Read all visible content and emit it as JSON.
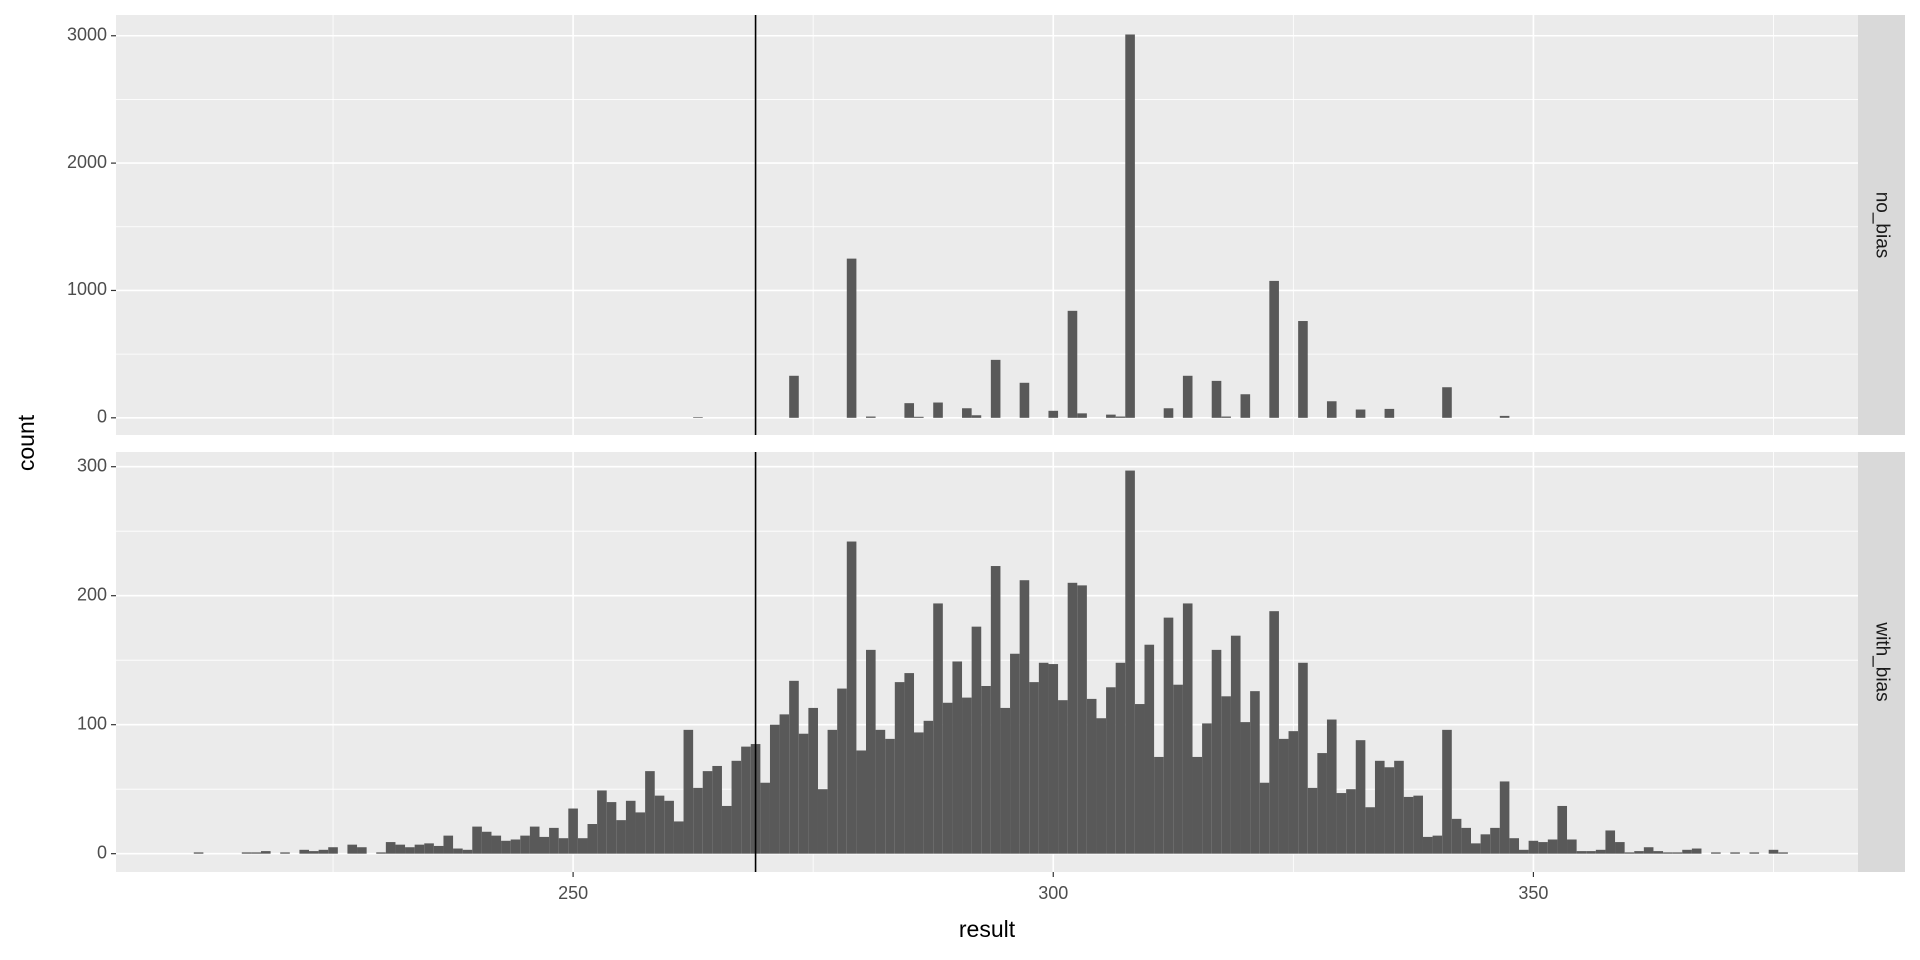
{
  "chart_data": {
    "type": "histogram",
    "x_label": "result",
    "y_label": "count",
    "color": "#595959",
    "grid": true,
    "xlim": [
      202.4,
      383.8
    ],
    "xticks": [
      250,
      300,
      350
    ],
    "vline": 269,
    "bins": [
      210.5,
      211.5,
      212.5,
      213.5,
      214.5,
      215.5,
      216.5,
      217.5,
      218.5,
      219.5,
      220.5,
      221.5,
      222.5,
      223.5,
      224.5,
      225.5,
      226.5,
      227.5,
      228.5,
      229.5,
      230.5,
      231.5,
      232.5,
      233.5,
      234.5,
      235.5,
      236.5,
      237.5,
      238.5,
      239.5,
      240.5,
      241.5,
      242.5,
      243.5,
      244.5,
      245.5,
      246.5,
      247.5,
      248.5,
      249.5,
      250.5,
      251.5,
      252.5,
      253.5,
      254.5,
      255.5,
      256.5,
      257.5,
      258.5,
      259.5,
      260.5,
      261.5,
      262.5,
      263.5,
      264.5,
      265.5,
      266.5,
      267.5,
      268.5,
      269.5,
      270.5,
      271.5,
      272.5,
      273.5,
      274.5,
      275.5,
      276.5,
      277.5,
      278.5,
      279.5,
      280.5,
      281.5,
      282.5,
      283.5,
      284.5,
      285.5,
      286.5,
      287.5,
      288.5,
      289.5,
      290.5,
      291.5,
      292.5,
      293.5,
      294.5,
      295.5,
      296.5,
      297.5,
      298.5,
      299.5,
      300.5,
      301.5,
      302.5,
      303.5,
      304.5,
      305.5,
      306.5,
      307.5,
      308.5,
      309.5,
      310.5,
      311.5,
      312.5,
      313.5,
      314.5,
      315.5,
      316.5,
      317.5,
      318.5,
      319.5,
      320.5,
      321.5,
      322.5,
      323.5,
      324.5,
      325.5,
      326.5,
      327.5,
      328.5,
      329.5,
      330.5,
      331.5,
      332.5,
      333.5,
      334.5,
      335.5,
      336.5,
      337.5,
      338.5,
      339.5,
      340.5,
      341.5,
      342.5,
      343.5,
      344.5,
      345.5,
      346.5,
      347.5,
      348.5,
      349.5,
      350.5,
      351.5,
      352.5,
      353.5,
      354.5,
      355.5,
      356.5,
      357.5,
      358.5,
      359.5,
      360.5,
      361.5,
      362.5,
      363.5,
      364.5,
      365.5,
      366.5,
      367.5,
      368.5,
      369.5,
      370.5,
      371.5,
      372.5,
      373.5,
      374.5,
      375.5,
      376.5
    ],
    "facets": [
      {
        "name": "no_bias",
        "ylim": [
          -135,
          3163
        ],
        "yticks": [
          0,
          1000,
          2000,
          3000
        ],
        "values": [
          0,
          0,
          0,
          0,
          0,
          0,
          0,
          0,
          0,
          0,
          0,
          0,
          0,
          0,
          0,
          0,
          0,
          0,
          0,
          0,
          0,
          0,
          0,
          0,
          0,
          0,
          0,
          0,
          0,
          0,
          0,
          0,
          0,
          0,
          0,
          0,
          0,
          0,
          0,
          0,
          0,
          0,
          0,
          0,
          0,
          0,
          0,
          0,
          0,
          0,
          0,
          0,
          5,
          0,
          0,
          0,
          0,
          0,
          0,
          0,
          0,
          0,
          330,
          0,
          0,
          0,
          0,
          0,
          1250,
          0,
          10,
          0,
          0,
          0,
          115,
          8,
          0,
          120,
          0,
          0,
          75,
          20,
          0,
          455,
          0,
          0,
          275,
          0,
          0,
          55,
          0,
          840,
          35,
          0,
          0,
          25,
          10,
          3010,
          0,
          0,
          0,
          75,
          0,
          330,
          0,
          0,
          290,
          10,
          0,
          185,
          0,
          0,
          1075,
          0,
          0,
          760,
          0,
          0,
          130,
          0,
          0,
          65,
          0,
          0,
          70,
          0,
          0,
          0,
          0,
          0,
          240,
          0,
          0,
          0,
          0,
          0,
          15,
          0,
          0,
          0,
          0,
          0,
          0,
          0,
          0,
          0,
          0,
          0,
          0,
          0,
          0,
          0,
          0,
          0,
          0,
          0,
          0,
          0,
          0,
          0,
          0,
          0,
          0,
          0,
          0,
          0
        ]
      },
      {
        "name": "with_bias",
        "ylim": [
          -14.2,
          311.4
        ],
        "yticks": [
          0,
          100,
          200,
          300
        ],
        "values": [
          1,
          0,
          0,
          0,
          0,
          1,
          1,
          2,
          0,
          1,
          0,
          3,
          2,
          3,
          5,
          0,
          7,
          5,
          0,
          1,
          9,
          7,
          5,
          7,
          8,
          6,
          14,
          4,
          3,
          21,
          17,
          14,
          10,
          11,
          14,
          21,
          13,
          20,
          12,
          35,
          12,
          23,
          49,
          40,
          26,
          41,
          32,
          64,
          45,
          41,
          25,
          96,
          51,
          64,
          68,
          37,
          72,
          83,
          85,
          55,
          100,
          108,
          134,
          93,
          113,
          50,
          96,
          128,
          242,
          80,
          158,
          96,
          89,
          133,
          140,
          94,
          103,
          194,
          117,
          149,
          121,
          176,
          130,
          223,
          113,
          155,
          212,
          133,
          148,
          147,
          119,
          210,
          208,
          120,
          105,
          129,
          148,
          297,
          116,
          162,
          75,
          183,
          131,
          194,
          75,
          101,
          158,
          122,
          169,
          102,
          126,
          55,
          188,
          89,
          95,
          148,
          51,
          78,
          104,
          47,
          50,
          88,
          36,
          72,
          67,
          72,
          44,
          45,
          13,
          14,
          96,
          27,
          20,
          8,
          15,
          20,
          56,
          12,
          3,
          10,
          9,
          11,
          37,
          11,
          2,
          2,
          3,
          18,
          9,
          1,
          2,
          5,
          2,
          1,
          1,
          3,
          4,
          0,
          1,
          0,
          1,
          0,
          1,
          0,
          3,
          1
        ]
      }
    ]
  }
}
